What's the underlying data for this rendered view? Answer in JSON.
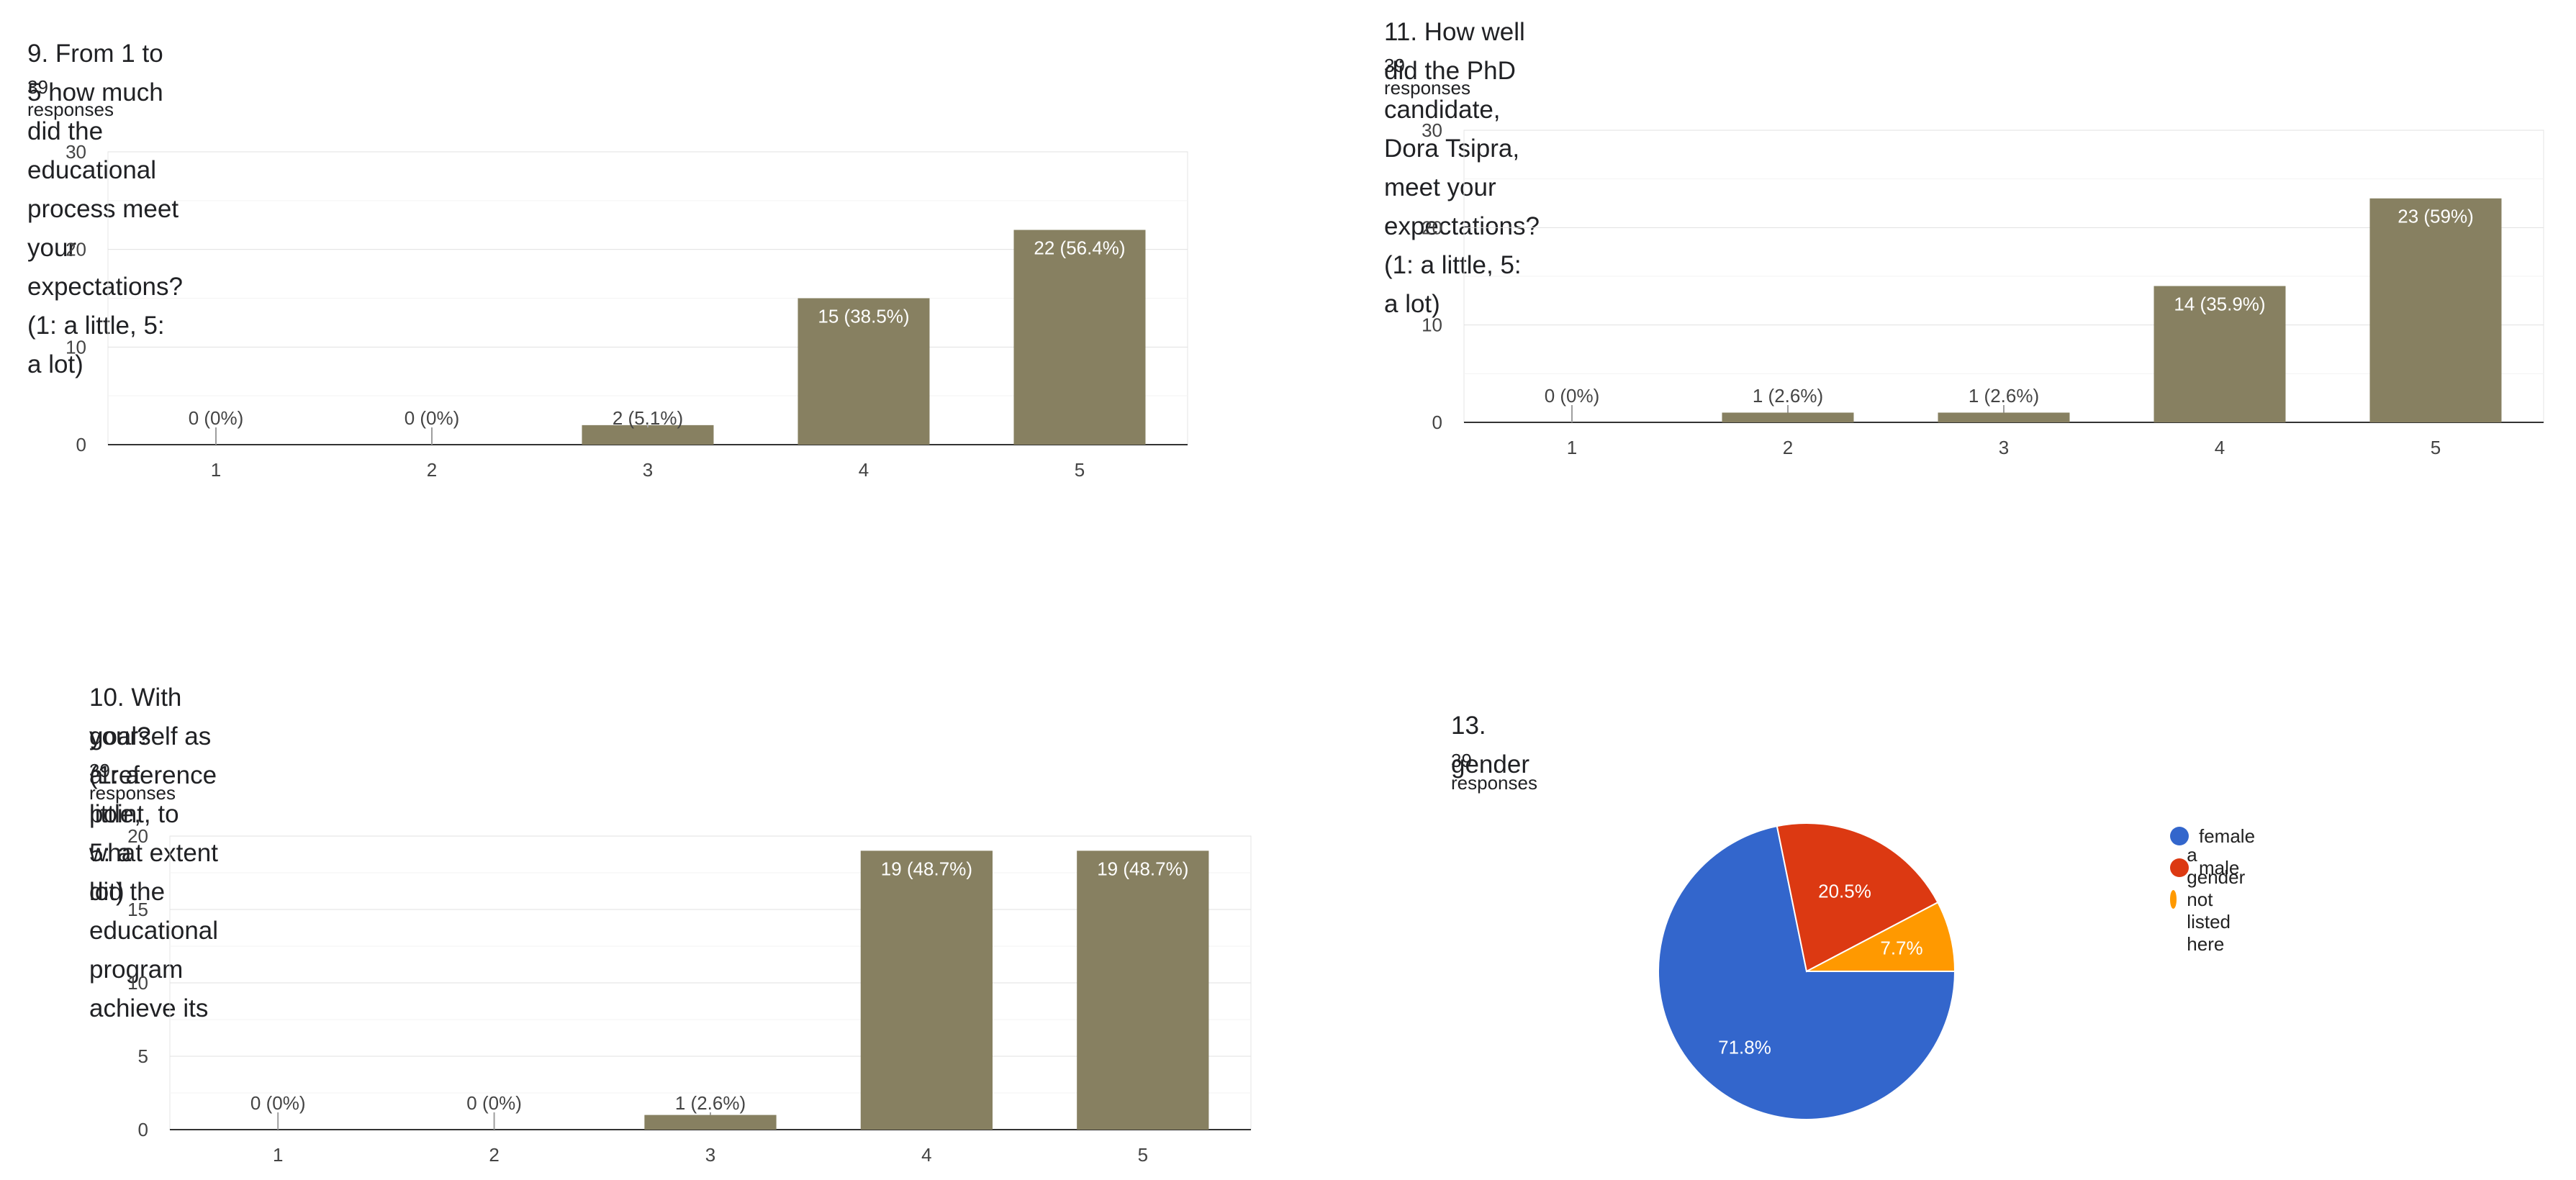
{
  "charts": [
    {
      "id": "q9",
      "title": "9. From 1 to 5 how much did the educational process meet your expectations? (1: a little, 5: a lot)",
      "responses": "39 responses"
    },
    {
      "id": "q11",
      "title": "11. How well did the PhD candidate, Dora Tsipra, meet your expectations? (1: a little, 5: a lot)",
      "responses": "39 responses"
    },
    {
      "id": "q10",
      "title_line1": "10. With yourself as a reference point, to what extent did the educational program achieve its",
      "title_line2": "goal? (1: a little, 5: a lot)",
      "responses": "39 responses"
    },
    {
      "id": "q13",
      "title": "13. gender",
      "responses": "39 responses",
      "legend": [
        {
          "label": "female",
          "color": "#3366cc"
        },
        {
          "label": "male",
          "color": "#dc3912"
        },
        {
          "label": "a gender not listed here",
          "color": "#ff9900"
        }
      ]
    }
  ],
  "chart_data": [
    {
      "type": "bar",
      "title": "9. From 1 to 5 how much did the educational process meet your expectations? (1: a little, 5: a lot)",
      "categories": [
        "1",
        "2",
        "3",
        "4",
        "5"
      ],
      "values": [
        0,
        0,
        2,
        15,
        22
      ],
      "labels": [
        "0 (0%)",
        "0 (0%)",
        "2 (5.1%)",
        "15 (38.5%)",
        "22 (56.4%)"
      ],
      "yticks": [
        0,
        10,
        20,
        30
      ],
      "ylim": [
        0,
        30
      ],
      "color": "#878061"
    },
    {
      "type": "bar",
      "title": "11. How well did the PhD candidate, Dora Tsipra, meet your expectations? (1: a little, 5: a lot)",
      "categories": [
        "1",
        "2",
        "3",
        "4",
        "5"
      ],
      "values": [
        0,
        1,
        1,
        14,
        23
      ],
      "labels": [
        "0 (0%)",
        "1 (2.6%)",
        "1 (2.6%)",
        "14 (35.9%)",
        "23 (59%)"
      ],
      "yticks": [
        0,
        10,
        20,
        30
      ],
      "ylim": [
        0,
        30
      ],
      "color": "#878061"
    },
    {
      "type": "bar",
      "title": "10. With yourself as a reference point, to what extent did the educational program achieve its goal? (1: a little, 5: a lot)",
      "categories": [
        "1",
        "2",
        "3",
        "4",
        "5"
      ],
      "values": [
        0,
        0,
        1,
        19,
        19
      ],
      "labels": [
        "0 (0%)",
        "0 (0%)",
        "1 (2.6%)",
        "19 (48.7%)",
        "19 (48.7%)"
      ],
      "yticks": [
        0,
        5,
        10,
        15,
        20
      ],
      "ylim": [
        0,
        20
      ],
      "color": "#878061"
    },
    {
      "type": "pie",
      "title": "13. gender",
      "categories": [
        "female",
        "male",
        "a gender not listed here"
      ],
      "values": [
        71.8,
        20.5,
        7.7
      ],
      "labels": [
        "71.8%",
        "20.5%",
        "7.7%"
      ],
      "colors": [
        "#3366cc",
        "#dc3912",
        "#ff9900"
      ]
    }
  ]
}
